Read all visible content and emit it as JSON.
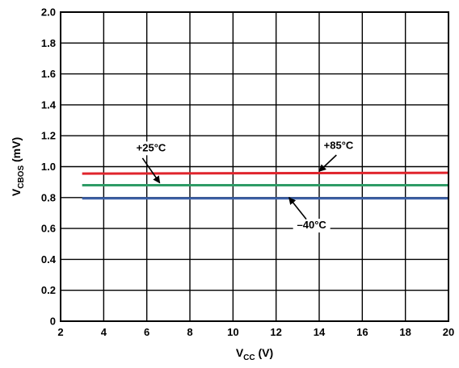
{
  "chart_data": {
    "type": "line",
    "xlabel": {
      "main": "V",
      "sub": "CC",
      "unit": " (V)"
    },
    "ylabel": {
      "main": "V",
      "sub": "CBOS",
      "unit": " (mV)"
    },
    "xlim": [
      2,
      20
    ],
    "ylim": [
      0,
      2.0
    ],
    "x_ticks": [
      2,
      4,
      6,
      8,
      10,
      12,
      14,
      16,
      18,
      20
    ],
    "x_tick_labels": [
      "2",
      "4",
      "6",
      "8",
      "10",
      "12",
      "14",
      "16",
      "18",
      "20"
    ],
    "y_ticks": [
      0,
      0.2,
      0.4,
      0.6,
      0.8,
      1.0,
      1.2,
      1.4,
      1.6,
      1.8,
      2.0
    ],
    "y_tick_labels": [
      "0",
      "0.2",
      "0.4",
      "0.6",
      "0.8",
      "1.0",
      "1.2",
      "1.4",
      "1.6",
      "1.8",
      "2.0"
    ],
    "grid": true,
    "series": [
      {
        "name": "+85°C",
        "color": "#e0242c",
        "x": [
          3,
          20
        ],
        "y": [
          0.955,
          0.96
        ]
      },
      {
        "name": "+25°C",
        "color": "#2e9b66",
        "x": [
          3,
          20
        ],
        "y": [
          0.88,
          0.88
        ]
      },
      {
        "name": "–40°C",
        "color": "#3a5fa6",
        "x": [
          3,
          20
        ],
        "y": [
          0.795,
          0.795
        ]
      }
    ],
    "annotations": [
      {
        "text": "+25°C",
        "series": 1,
        "text_x": 6.2,
        "text_y": 1.1,
        "arrow_from": [
          5.8,
          1.055
        ],
        "arrow_to": [
          6.6,
          0.895
        ]
      },
      {
        "text": "+85°C",
        "series": 0,
        "text_x": 14.9,
        "text_y": 1.115,
        "arrow_from": [
          14.8,
          1.075
        ],
        "arrow_to": [
          14.0,
          0.97
        ]
      },
      {
        "text": "–40°C",
        "series": 2,
        "text_x": 13.65,
        "text_y": 0.6,
        "arrow_from": [
          13.4,
          0.66
        ],
        "arrow_to": [
          12.6,
          0.8
        ]
      }
    ]
  }
}
